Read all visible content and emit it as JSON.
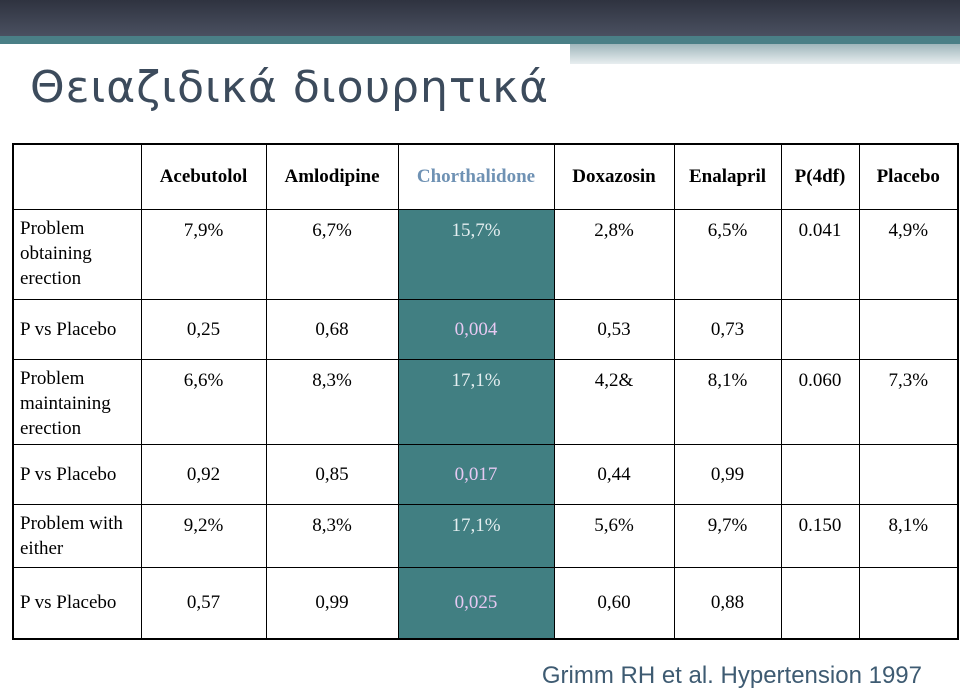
{
  "title": "Θειαζιδικά διουρητικά",
  "table": {
    "header": [
      "Acebutolol",
      "Amlodipine",
      "Chorthalidone",
      "Doxazosin",
      "Enalapril",
      "P(4df)",
      "Placebo"
    ],
    "rows": [
      {
        "label": "Problem obtaining erection",
        "cells": [
          "7,9%",
          "6,7%",
          "15,7%",
          "2,8%",
          "6,5%",
          "0.041",
          "4,9%"
        ]
      },
      {
        "label": "P vs Placebo",
        "cells": [
          "0,25",
          "0,68",
          "0,004",
          "0,53",
          "0,73"
        ]
      },
      {
        "label": "Problem maintaining erection",
        "cells": [
          "6,6%",
          "8,3%",
          "17,1%",
          "4,2&",
          "8,1%",
          "0.060",
          "7,3%"
        ]
      },
      {
        "label": "P vs Placebo",
        "cells": [
          "0,92",
          "0,85",
          "0,017",
          "0,44",
          "0,99"
        ]
      },
      {
        "label": "Problem with either",
        "cells": [
          "9,2%",
          "8,3%",
          "17,1%",
          "5,6%",
          "9,7%",
          "0.150",
          "8,1%"
        ]
      },
      {
        "label": "P vs Placebo",
        "cells": [
          "0,57",
          "0,99",
          "0,025",
          "0,60",
          "0,88"
        ]
      }
    ]
  },
  "citation": "Grimm RH et al. Hypertension 1997"
}
